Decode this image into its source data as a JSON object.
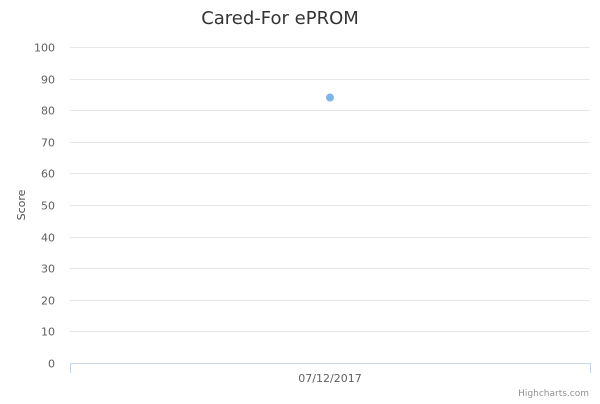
{
  "chart_data": {
    "type": "scatter",
    "title": "Cared-For ePROM",
    "xlabel": "",
    "ylabel": "Score",
    "categories": [
      "07/12/2017"
    ],
    "series": [
      {
        "values": [
          84
        ]
      }
    ],
    "ylim": [
      0,
      100
    ],
    "yticks": [
      0,
      10,
      20,
      30,
      40,
      50,
      60,
      70,
      80,
      90,
      100
    ],
    "grid": true,
    "legend": "none",
    "colors": {
      "series": "#7cb5ec",
      "grid": "#e6e6e6",
      "axis": "#ccd6eb"
    }
  },
  "credits": "Highcharts.com"
}
